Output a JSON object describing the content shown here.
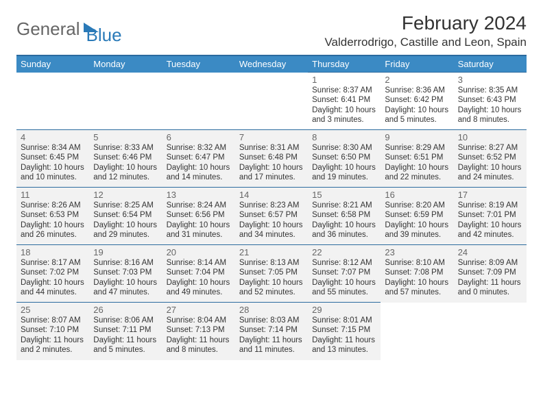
{
  "logo": {
    "general": "General",
    "blue": "Blue"
  },
  "title": "February 2024",
  "location": "Valderrodrigo, Castille and Leon, Spain",
  "day_headers": [
    "Sunday",
    "Monday",
    "Tuesday",
    "Wednesday",
    "Thursday",
    "Friday",
    "Saturday"
  ],
  "colors": {
    "header_bg": "#3b8ac4",
    "header_border": "#2a6a9e",
    "shaded_bg": "#f2f2f2"
  },
  "cells": [
    {
      "day": "",
      "sunrise": "",
      "sunset": "",
      "daylight": "",
      "shaded": false,
      "blank": true
    },
    {
      "day": "",
      "sunrise": "",
      "sunset": "",
      "daylight": "",
      "shaded": false,
      "blank": true
    },
    {
      "day": "",
      "sunrise": "",
      "sunset": "",
      "daylight": "",
      "shaded": false,
      "blank": true
    },
    {
      "day": "",
      "sunrise": "",
      "sunset": "",
      "daylight": "",
      "shaded": false,
      "blank": true
    },
    {
      "day": "1",
      "sunrise": "Sunrise: 8:37 AM",
      "sunset": "Sunset: 6:41 PM",
      "daylight": "Daylight: 10 hours and 3 minutes.",
      "shaded": false
    },
    {
      "day": "2",
      "sunrise": "Sunrise: 8:36 AM",
      "sunset": "Sunset: 6:42 PM",
      "daylight": "Daylight: 10 hours and 5 minutes.",
      "shaded": false
    },
    {
      "day": "3",
      "sunrise": "Sunrise: 8:35 AM",
      "sunset": "Sunset: 6:43 PM",
      "daylight": "Daylight: 10 hours and 8 minutes.",
      "shaded": false
    },
    {
      "day": "4",
      "sunrise": "Sunrise: 8:34 AM",
      "sunset": "Sunset: 6:45 PM",
      "daylight": "Daylight: 10 hours and 10 minutes.",
      "shaded": true
    },
    {
      "day": "5",
      "sunrise": "Sunrise: 8:33 AM",
      "sunset": "Sunset: 6:46 PM",
      "daylight": "Daylight: 10 hours and 12 minutes.",
      "shaded": true
    },
    {
      "day": "6",
      "sunrise": "Sunrise: 8:32 AM",
      "sunset": "Sunset: 6:47 PM",
      "daylight": "Daylight: 10 hours and 14 minutes.",
      "shaded": true
    },
    {
      "day": "7",
      "sunrise": "Sunrise: 8:31 AM",
      "sunset": "Sunset: 6:48 PM",
      "daylight": "Daylight: 10 hours and 17 minutes.",
      "shaded": true
    },
    {
      "day": "8",
      "sunrise": "Sunrise: 8:30 AM",
      "sunset": "Sunset: 6:50 PM",
      "daylight": "Daylight: 10 hours and 19 minutes.",
      "shaded": true
    },
    {
      "day": "9",
      "sunrise": "Sunrise: 8:29 AM",
      "sunset": "Sunset: 6:51 PM",
      "daylight": "Daylight: 10 hours and 22 minutes.",
      "shaded": true
    },
    {
      "day": "10",
      "sunrise": "Sunrise: 8:27 AM",
      "sunset": "Sunset: 6:52 PM",
      "daylight": "Daylight: 10 hours and 24 minutes.",
      "shaded": true
    },
    {
      "day": "11",
      "sunrise": "Sunrise: 8:26 AM",
      "sunset": "Sunset: 6:53 PM",
      "daylight": "Daylight: 10 hours and 26 minutes.",
      "shaded": true
    },
    {
      "day": "12",
      "sunrise": "Sunrise: 8:25 AM",
      "sunset": "Sunset: 6:54 PM",
      "daylight": "Daylight: 10 hours and 29 minutes.",
      "shaded": true
    },
    {
      "day": "13",
      "sunrise": "Sunrise: 8:24 AM",
      "sunset": "Sunset: 6:56 PM",
      "daylight": "Daylight: 10 hours and 31 minutes.",
      "shaded": true
    },
    {
      "day": "14",
      "sunrise": "Sunrise: 8:23 AM",
      "sunset": "Sunset: 6:57 PM",
      "daylight": "Daylight: 10 hours and 34 minutes.",
      "shaded": true
    },
    {
      "day": "15",
      "sunrise": "Sunrise: 8:21 AM",
      "sunset": "Sunset: 6:58 PM",
      "daylight": "Daylight: 10 hours and 36 minutes.",
      "shaded": true
    },
    {
      "day": "16",
      "sunrise": "Sunrise: 8:20 AM",
      "sunset": "Sunset: 6:59 PM",
      "daylight": "Daylight: 10 hours and 39 minutes.",
      "shaded": true
    },
    {
      "day": "17",
      "sunrise": "Sunrise: 8:19 AM",
      "sunset": "Sunset: 7:01 PM",
      "daylight": "Daylight: 10 hours and 42 minutes.",
      "shaded": true
    },
    {
      "day": "18",
      "sunrise": "Sunrise: 8:17 AM",
      "sunset": "Sunset: 7:02 PM",
      "daylight": "Daylight: 10 hours and 44 minutes.",
      "shaded": true
    },
    {
      "day": "19",
      "sunrise": "Sunrise: 8:16 AM",
      "sunset": "Sunset: 7:03 PM",
      "daylight": "Daylight: 10 hours and 47 minutes.",
      "shaded": true
    },
    {
      "day": "20",
      "sunrise": "Sunrise: 8:14 AM",
      "sunset": "Sunset: 7:04 PM",
      "daylight": "Daylight: 10 hours and 49 minutes.",
      "shaded": true
    },
    {
      "day": "21",
      "sunrise": "Sunrise: 8:13 AM",
      "sunset": "Sunset: 7:05 PM",
      "daylight": "Daylight: 10 hours and 52 minutes.",
      "shaded": true
    },
    {
      "day": "22",
      "sunrise": "Sunrise: 8:12 AM",
      "sunset": "Sunset: 7:07 PM",
      "daylight": "Daylight: 10 hours and 55 minutes.",
      "shaded": true
    },
    {
      "day": "23",
      "sunrise": "Sunrise: 8:10 AM",
      "sunset": "Sunset: 7:08 PM",
      "daylight": "Daylight: 10 hours and 57 minutes.",
      "shaded": true
    },
    {
      "day": "24",
      "sunrise": "Sunrise: 8:09 AM",
      "sunset": "Sunset: 7:09 PM",
      "daylight": "Daylight: 11 hours and 0 minutes.",
      "shaded": true
    },
    {
      "day": "25",
      "sunrise": "Sunrise: 8:07 AM",
      "sunset": "Sunset: 7:10 PM",
      "daylight": "Daylight: 11 hours and 2 minutes.",
      "shaded": true
    },
    {
      "day": "26",
      "sunrise": "Sunrise: 8:06 AM",
      "sunset": "Sunset: 7:11 PM",
      "daylight": "Daylight: 11 hours and 5 minutes.",
      "shaded": true
    },
    {
      "day": "27",
      "sunrise": "Sunrise: 8:04 AM",
      "sunset": "Sunset: 7:13 PM",
      "daylight": "Daylight: 11 hours and 8 minutes.",
      "shaded": true
    },
    {
      "day": "28",
      "sunrise": "Sunrise: 8:03 AM",
      "sunset": "Sunset: 7:14 PM",
      "daylight": "Daylight: 11 hours and 11 minutes.",
      "shaded": true
    },
    {
      "day": "29",
      "sunrise": "Sunrise: 8:01 AM",
      "sunset": "Sunset: 7:15 PM",
      "daylight": "Daylight: 11 hours and 13 minutes.",
      "shaded": true
    },
    {
      "day": "",
      "sunrise": "",
      "sunset": "",
      "daylight": "",
      "shaded": false,
      "blank": true
    },
    {
      "day": "",
      "sunrise": "",
      "sunset": "",
      "daylight": "",
      "shaded": false,
      "blank": true
    }
  ]
}
